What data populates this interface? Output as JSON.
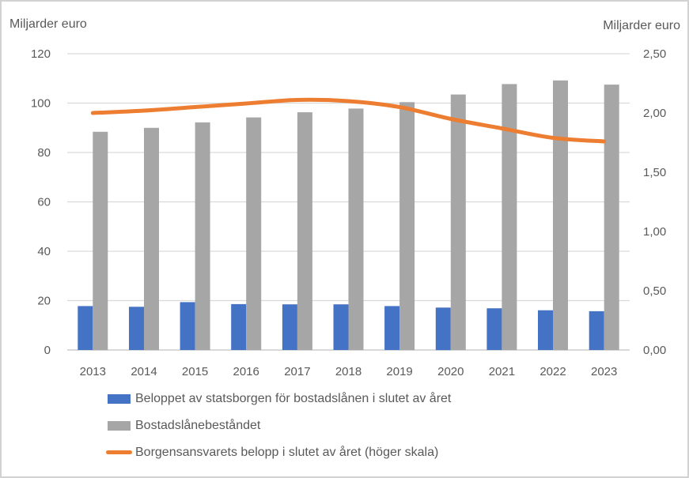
{
  "frame": {
    "background_color": "#FFFFFF",
    "border_color": "#D2D2D2"
  },
  "chart_data": {
    "type": "combo-bar-line",
    "title": "",
    "categories": [
      "2013",
      "2014",
      "2015",
      "2016",
      "2017",
      "2018",
      "2019",
      "2020",
      "2021",
      "2022",
      "2023"
    ],
    "series": [
      {
        "name": "Beloppet av statsborgen för bostadslånen i slutet av året",
        "type": "bar",
        "axis": "left",
        "color": "#4472C4",
        "values": [
          17.8,
          17.5,
          19.4,
          18.6,
          18.5,
          18.5,
          17.8,
          17.2,
          16.9,
          16.1,
          15.7
        ]
      },
      {
        "name": "Bostadslånebeståndet",
        "type": "bar",
        "axis": "left",
        "color": "#A6A6A6",
        "values": [
          88.4,
          90.0,
          92.2,
          94.2,
          96.3,
          97.8,
          100.4,
          103.5,
          107.7,
          109.2,
          107.5
        ]
      },
      {
        "name": "Borgensansvarets belopp i slutet av året (höger skala)",
        "type": "line",
        "axis": "right",
        "color": "#ED7D31",
        "values": [
          2.0,
          2.02,
          2.05,
          2.08,
          2.11,
          2.1,
          2.05,
          1.95,
          1.87,
          1.79,
          1.76
        ]
      }
    ],
    "left_axis": {
      "title": "Miljarder euro",
      "range": [
        0,
        120
      ],
      "tick_values": [
        0,
        20,
        40,
        60,
        80,
        100,
        120
      ],
      "tick_labels": [
        "0",
        "20",
        "40",
        "60",
        "80",
        "100",
        "120"
      ]
    },
    "right_axis": {
      "title": "Miljarder euro",
      "range": [
        0,
        2.5
      ],
      "tick_values": [
        0,
        0.5,
        1.0,
        1.5,
        2.0,
        2.5
      ],
      "tick_labels": [
        "0,00",
        "0,50",
        "1,00",
        "1,50",
        "2,00",
        "2,50"
      ]
    },
    "grid": true,
    "legend_position": "bottom-left",
    "text_color": "#595959",
    "gridline_color": "#D9D9D9",
    "axisline_color": "#D9D9D9"
  }
}
